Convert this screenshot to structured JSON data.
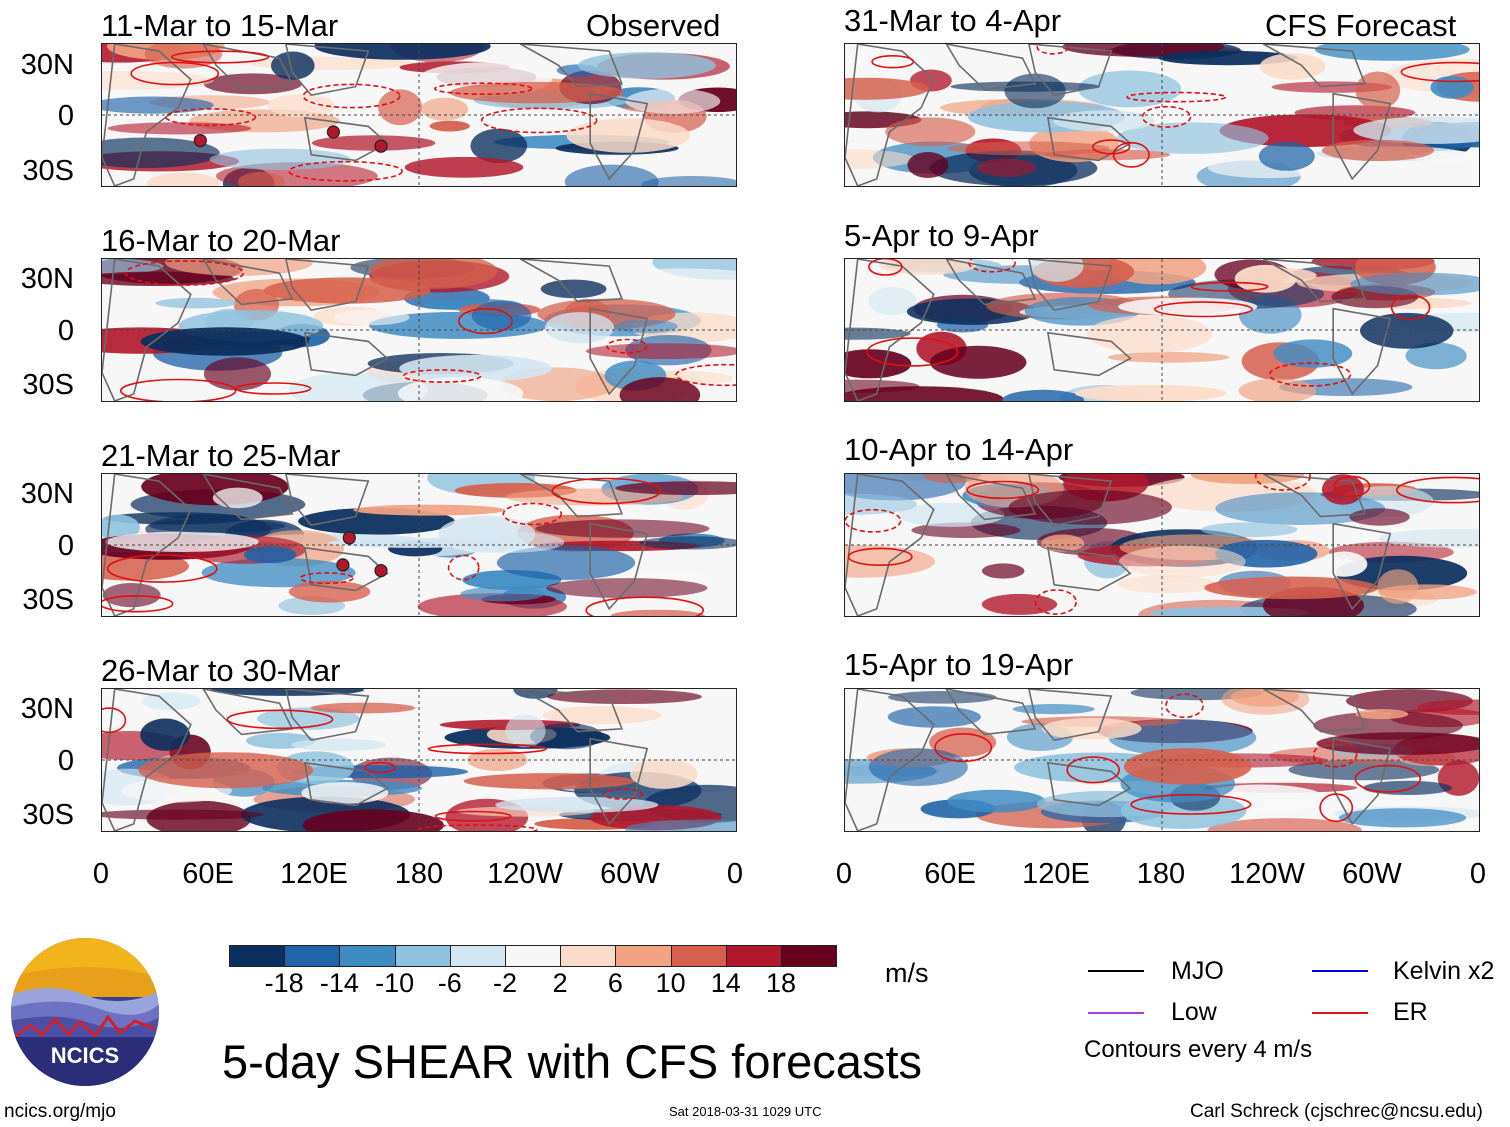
{
  "panels": [
    {
      "id": "p1",
      "title": "11-Mar to 15-Mar",
      "label": "Observed",
      "group": "observed",
      "storms": true
    },
    {
      "id": "p2",
      "title": "16-Mar to 20-Mar",
      "label": "",
      "group": "observed",
      "storms": false
    },
    {
      "id": "p3",
      "title": "21-Mar to 25-Mar",
      "label": "",
      "group": "observed",
      "storms": true
    },
    {
      "id": "p4",
      "title": "26-Mar to 30-Mar",
      "label": "",
      "group": "observed",
      "storms": false
    },
    {
      "id": "p5",
      "title": "31-Mar to 4-Apr",
      "label": "CFS Forecast",
      "group": "forecast",
      "storms": false
    },
    {
      "id": "p6",
      "title": "5-Apr to 9-Apr",
      "label": "",
      "group": "forecast",
      "storms": false
    },
    {
      "id": "p7",
      "title": "10-Apr to 14-Apr",
      "label": "",
      "group": "forecast",
      "storms": false
    },
    {
      "id": "p8",
      "title": "15-Apr to 19-Apr",
      "label": "",
      "group": "forecast",
      "storms": false
    }
  ],
  "lat_labels": [
    "30N",
    "0",
    "30S"
  ],
  "lon_labels": [
    "0",
    "60E",
    "120E",
    "180",
    "120W",
    "60W",
    "0"
  ],
  "colorbar": {
    "colors": [
      "#0b2f5e",
      "#1f63a8",
      "#3f8cc3",
      "#8fc2de",
      "#d2e6f0",
      "#f7f7f7",
      "#fcdcc8",
      "#f1a383",
      "#d6604d",
      "#b2182b",
      "#67001f"
    ],
    "ticks": [
      "-18",
      "-14",
      "-10",
      "-6",
      "-2",
      "2",
      "6",
      "10",
      "14",
      "18"
    ],
    "units": "m/s"
  },
  "legend": {
    "items": [
      {
        "label": "MJO",
        "color": "#000000"
      },
      {
        "label": "Kelvin x2",
        "color": "#0000e0"
      },
      {
        "label": "Low",
        "color": "#a040e0"
      },
      {
        "label": "ER",
        "color": "#e01010"
      }
    ],
    "note": "Contours every 4 m/s"
  },
  "logo_text": "NCICS",
  "main_title": "5-day SHEAR with CFS forecasts",
  "footer": {
    "url": "ncics.org/mjo",
    "timestamp": "Sat 2018-03-31 1029 UTC",
    "author": "Carl Schreck (cjschrec@ncsu.edu)"
  }
}
